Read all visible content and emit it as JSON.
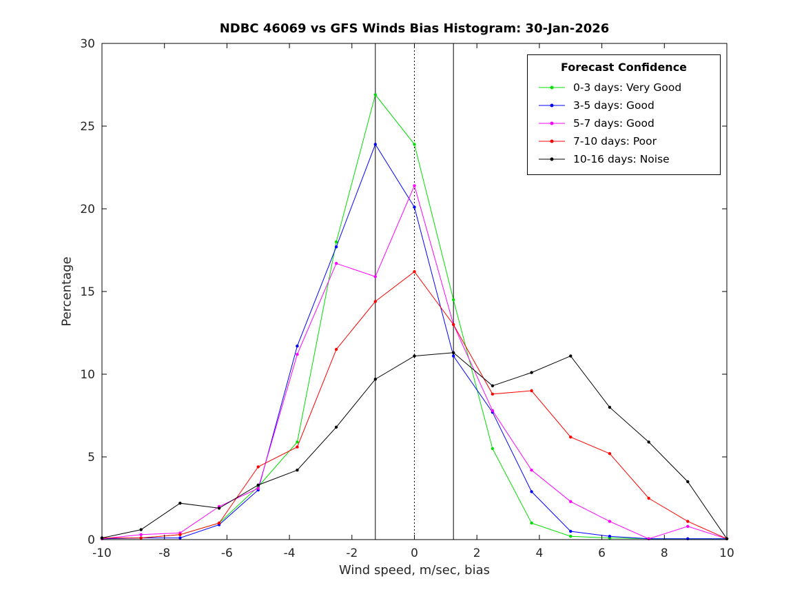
{
  "chart_data": {
    "type": "line",
    "title": "NDBC 46069 vs GFS Winds Bias Histogram: 30-Jan-2026",
    "xlabel": "Wind speed, m/sec, bias",
    "ylabel": "Percentage",
    "xlim": [
      -10,
      10
    ],
    "ylim": [
      0,
      30
    ],
    "xticks": [
      -10,
      -8,
      -6,
      -4,
      -2,
      0,
      2,
      4,
      6,
      8,
      10
    ],
    "yticks": [
      0,
      5,
      10,
      15,
      20,
      25,
      30
    ],
    "grid": false,
    "x": [
      -10,
      -8.75,
      -7.5,
      -6.25,
      -5,
      -3.75,
      -2.5,
      -1.25,
      0,
      1.25,
      2.5,
      3.75,
      5,
      6.25,
      7.5,
      8.75,
      10
    ],
    "series": [
      {
        "name": "0-3 days: Very Good",
        "color": "#00dd00",
        "values": [
          0.05,
          0.1,
          0.3,
          1.0,
          3.2,
          5.9,
          18.0,
          26.9,
          23.9,
          14.5,
          5.5,
          1.0,
          0.2,
          0.1,
          0.05,
          0.05,
          0.05
        ]
      },
      {
        "name": "3-5 days: Good",
        "color": "#0000ff",
        "values": [
          0.05,
          0.1,
          0.1,
          0.9,
          3.0,
          11.7,
          17.7,
          23.9,
          20.1,
          11.1,
          7.7,
          2.9,
          0.5,
          0.2,
          0.05,
          0.05,
          0.05
        ]
      },
      {
        "name": "5-7 days: Good",
        "color": "#ff00ff",
        "values": [
          0.05,
          0.3,
          0.4,
          2.0,
          3.1,
          11.2,
          16.7,
          15.9,
          21.4,
          13.0,
          7.8,
          4.2,
          2.3,
          1.1,
          0.05,
          0.8,
          0.05
        ]
      },
      {
        "name": "7-10 days: Poor",
        "color": "#ff0000",
        "values": [
          0.1,
          0.1,
          0.3,
          1.0,
          4.4,
          5.6,
          11.5,
          14.4,
          16.2,
          13.0,
          8.8,
          9.0,
          6.2,
          5.2,
          2.5,
          1.1,
          0.05
        ]
      },
      {
        "name": "10-16 days: Noise",
        "color": "#000000",
        "values": [
          0.1,
          0.6,
          2.2,
          1.9,
          3.3,
          4.2,
          6.8,
          9.7,
          11.1,
          11.3,
          9.3,
          10.1,
          11.1,
          8.0,
          5.9,
          3.5,
          0.05
        ]
      }
    ],
    "reference_lines": [
      {
        "x": -1.25,
        "style": "solid"
      },
      {
        "x": 0,
        "style": "dotted"
      },
      {
        "x": 1.25,
        "style": "solid"
      }
    ],
    "legend": {
      "title": "Forecast Confidence",
      "position": "top-right"
    }
  }
}
